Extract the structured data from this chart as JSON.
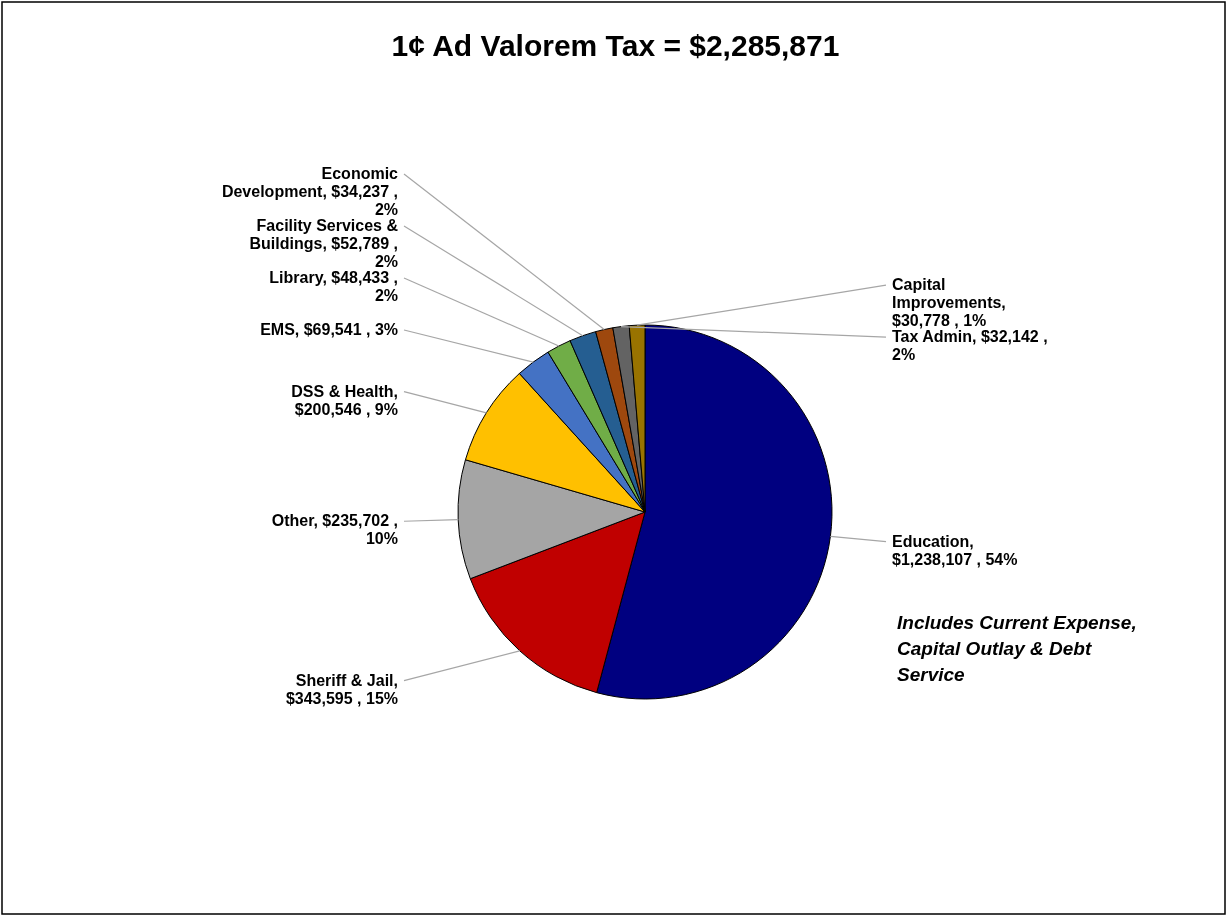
{
  "chart_data": {
    "type": "pie",
    "title": "1¢ Ad Valorem Tax = $2,285,871",
    "categories": [
      "Education",
      "Sheriff & Jail",
      "Other",
      "DSS & Health",
      "EMS",
      "Library",
      "Facility Services & Buildings",
      "Economic Development",
      "Tax Admin",
      "Capital Improvements"
    ],
    "values": [
      1238107,
      343595,
      235702,
      200546,
      69541,
      48433,
      52789,
      34237,
      32142,
      30778
    ],
    "colors": [
      "#000080",
      "#c00000",
      "#a5a5a5",
      "#ffc000",
      "#4472c4",
      "#70ad47",
      "#255e91",
      "#9e480e",
      "#636363",
      "#997300"
    ],
    "value_labels": [
      ", $1,238,107 , 54%",
      ", $343,595 , 15%",
      ", $235,702 , 10%",
      ", $200,546 , 9%",
      ", $69,541 , 3%",
      ", $48,433 , 2%",
      ", $52,789 , 2%",
      ", $34,237 , 2%",
      ", $32,142 , 2%",
      ", $30,778 , 1%"
    ],
    "annotations": [
      "Includes Current Expense, Capital Outlay & Debt Service"
    ]
  }
}
